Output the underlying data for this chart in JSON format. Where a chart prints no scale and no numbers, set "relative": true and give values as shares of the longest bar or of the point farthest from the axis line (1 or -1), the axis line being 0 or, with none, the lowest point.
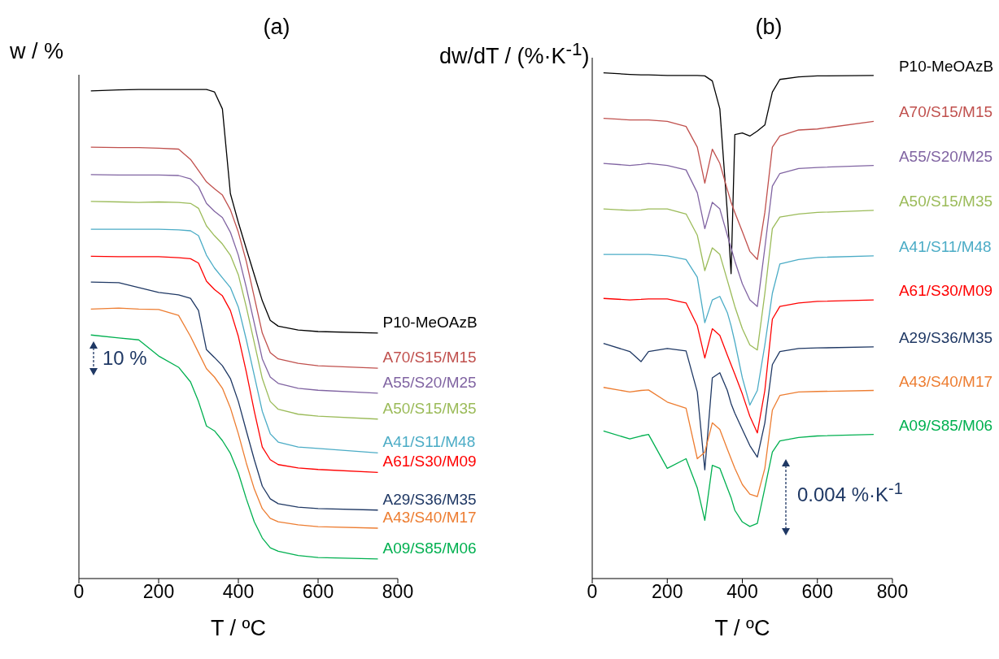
{
  "chart_data": [
    {
      "type": "line",
      "relative": true,
      "title": "(a)",
      "xlabel": "T / ºC",
      "ylabel": "w / %",
      "annotations": [
        "10 %"
      ],
      "x": [
        30,
        100,
        150,
        200,
        250,
        280,
        300,
        320,
        340,
        360,
        380,
        400,
        420,
        440,
        460,
        480,
        500,
        550,
        600,
        750
      ],
      "xlim": [
        0,
        800
      ],
      "xticks": [
        0,
        200,
        400,
        600,
        800
      ],
      "series": [
        {
          "name": "P10-MeOAzB",
          "color": "#000000",
          "values": [
            0.997,
            0.999,
            1.0,
            1.0,
            1.0,
            1.0,
            1.0,
            1.0,
            0.995,
            0.96,
            0.787,
            0.728,
            0.674,
            0.621,
            0.568,
            0.528,
            0.516,
            0.508,
            0.505,
            0.502
          ]
        },
        {
          "name": "A70/S15/M15",
          "color": "#c0504d",
          "values": [
            0.882,
            0.881,
            0.881,
            0.88,
            0.878,
            0.857,
            0.834,
            0.811,
            0.797,
            0.784,
            0.754,
            0.708,
            0.648,
            0.575,
            0.502,
            0.462,
            0.449,
            0.44,
            0.435,
            0.43
          ]
        },
        {
          "name": "A55/S20/M25",
          "color": "#8064a2",
          "values": [
            0.826,
            0.825,
            0.825,
            0.825,
            0.824,
            0.817,
            0.801,
            0.767,
            0.751,
            0.738,
            0.708,
            0.661,
            0.595,
            0.522,
            0.449,
            0.412,
            0.399,
            0.389,
            0.385,
            0.379
          ]
        },
        {
          "name": "A50/S15/M35",
          "color": "#9bbb59",
          "values": [
            0.771,
            0.77,
            0.769,
            0.77,
            0.769,
            0.767,
            0.757,
            0.721,
            0.701,
            0.684,
            0.661,
            0.621,
            0.555,
            0.482,
            0.409,
            0.362,
            0.346,
            0.336,
            0.332,
            0.326
          ]
        },
        {
          "name": "A41/S11/M48",
          "color": "#4bacc6",
          "values": [
            0.714,
            0.714,
            0.714,
            0.714,
            0.713,
            0.711,
            0.701,
            0.661,
            0.635,
            0.615,
            0.595,
            0.555,
            0.488,
            0.415,
            0.342,
            0.296,
            0.279,
            0.269,
            0.266,
            0.257
          ]
        },
        {
          "name": "A61/S30/M09",
          "color": "#ff0000",
          "values": [
            0.659,
            0.658,
            0.658,
            0.658,
            0.656,
            0.654,
            0.645,
            0.608,
            0.591,
            0.578,
            0.548,
            0.495,
            0.422,
            0.342,
            0.269,
            0.243,
            0.233,
            0.226,
            0.223,
            0.217
          ]
        },
        {
          "name": "A29/S36/M35",
          "color": "#1f3864",
          "values": [
            0.606,
            0.605,
            0.595,
            0.585,
            0.58,
            0.573,
            0.548,
            0.468,
            0.452,
            0.435,
            0.409,
            0.362,
            0.302,
            0.243,
            0.189,
            0.163,
            0.153,
            0.146,
            0.143,
            0.14
          ]
        },
        {
          "name": "A43/S40/M17",
          "color": "#ed7d31",
          "values": [
            0.551,
            0.553,
            0.551,
            0.55,
            0.538,
            0.495,
            0.462,
            0.429,
            0.412,
            0.389,
            0.349,
            0.296,
            0.236,
            0.183,
            0.143,
            0.123,
            0.116,
            0.11,
            0.106,
            0.103
          ]
        },
        {
          "name": "A09/S85/M06",
          "color": "#00b050",
          "values": [
            0.498,
            0.492,
            0.488,
            0.455,
            0.432,
            0.402,
            0.362,
            0.312,
            0.302,
            0.282,
            0.256,
            0.216,
            0.163,
            0.116,
            0.083,
            0.063,
            0.056,
            0.047,
            0.043,
            0.04
          ]
        }
      ]
    },
    {
      "type": "line",
      "relative": true,
      "title": "(b)",
      "xlabel": "T / ºC",
      "ylabel": "dw/dT / (%·K$^{-1}$)",
      "annotations": [
        "0.004 %·K$^{-1}$"
      ],
      "x": [
        30,
        100,
        130,
        150,
        200,
        250,
        280,
        300,
        320,
        340,
        360,
        370,
        380,
        400,
        420,
        440,
        460,
        480,
        500,
        550,
        600,
        750
      ],
      "xlim": [
        0,
        800
      ],
      "xticks": [
        0,
        200,
        400,
        600,
        800
      ],
      "series": [
        {
          "name": "P10-MeOAzB",
          "color": "#000000",
          "values": [
            1.0,
            0.997,
            0.996,
            0.996,
            0.995,
            0.995,
            0.995,
            0.994,
            0.984,
            0.929,
            0.724,
            0.603,
            0.878,
            0.881,
            0.875,
            0.885,
            0.897,
            0.962,
            0.987,
            0.992,
            0.994,
            0.995
          ]
        },
        {
          "name": "A70/S15/M15",
          "color": "#c0504d",
          "values": [
            0.91,
            0.907,
            0.907,
            0.907,
            0.904,
            0.894,
            0.853,
            0.782,
            0.849,
            0.821,
            0.769,
            0.744,
            0.724,
            0.686,
            0.647,
            0.631,
            0.724,
            0.853,
            0.875,
            0.887,
            0.889,
            0.904
          ]
        },
        {
          "name": "A55/S20/M25",
          "color": "#8064a2",
          "values": [
            0.821,
            0.817,
            0.819,
            0.821,
            0.817,
            0.808,
            0.763,
            0.692,
            0.744,
            0.731,
            0.679,
            0.654,
            0.628,
            0.583,
            0.551,
            0.538,
            0.654,
            0.776,
            0.801,
            0.811,
            0.813,
            0.817
          ]
        },
        {
          "name": "A50/S15/M35",
          "color": "#9bbb59",
          "values": [
            0.731,
            0.728,
            0.729,
            0.731,
            0.731,
            0.721,
            0.679,
            0.609,
            0.654,
            0.641,
            0.59,
            0.564,
            0.538,
            0.494,
            0.462,
            0.452,
            0.564,
            0.692,
            0.715,
            0.721,
            0.724,
            0.728
          ]
        },
        {
          "name": "A41/S11/M48",
          "color": "#4bacc6",
          "values": [
            0.641,
            0.641,
            0.641,
            0.641,
            0.638,
            0.631,
            0.596,
            0.506,
            0.551,
            0.558,
            0.526,
            0.5,
            0.468,
            0.397,
            0.343,
            0.372,
            0.462,
            0.564,
            0.622,
            0.631,
            0.635,
            0.638
          ]
        },
        {
          "name": "A61/S30/M09",
          "color": "#ff0000",
          "values": [
            0.554,
            0.551,
            0.552,
            0.553,
            0.553,
            0.545,
            0.5,
            0.436,
            0.494,
            0.481,
            0.442,
            0.423,
            0.404,
            0.365,
            0.321,
            0.288,
            0.372,
            0.513,
            0.538,
            0.545,
            0.548,
            0.551
          ]
        },
        {
          "name": "A29/S36/M35",
          "color": "#1f3864",
          "values": [
            0.465,
            0.449,
            0.429,
            0.449,
            0.455,
            0.45,
            0.369,
            0.215,
            0.397,
            0.407,
            0.372,
            0.346,
            0.327,
            0.295,
            0.263,
            0.24,
            0.308,
            0.423,
            0.449,
            0.455,
            0.456,
            0.458
          ]
        },
        {
          "name": "A43/S40/M17",
          "color": "#ed7d31",
          "values": [
            0.378,
            0.369,
            0.372,
            0.373,
            0.349,
            0.337,
            0.237,
            0.25,
            0.308,
            0.295,
            0.256,
            0.237,
            0.218,
            0.186,
            0.167,
            0.162,
            0.218,
            0.333,
            0.362,
            0.369,
            0.37,
            0.372
          ]
        },
        {
          "name": "A09/S85/M06",
          "color": "#00b050",
          "values": [
            0.292,
            0.276,
            0.282,
            0.285,
            0.218,
            0.237,
            0.179,
            0.115,
            0.224,
            0.218,
            0.179,
            0.16,
            0.135,
            0.112,
            0.103,
            0.109,
            0.179,
            0.25,
            0.272,
            0.279,
            0.282,
            0.285
          ]
        }
      ]
    }
  ]
}
